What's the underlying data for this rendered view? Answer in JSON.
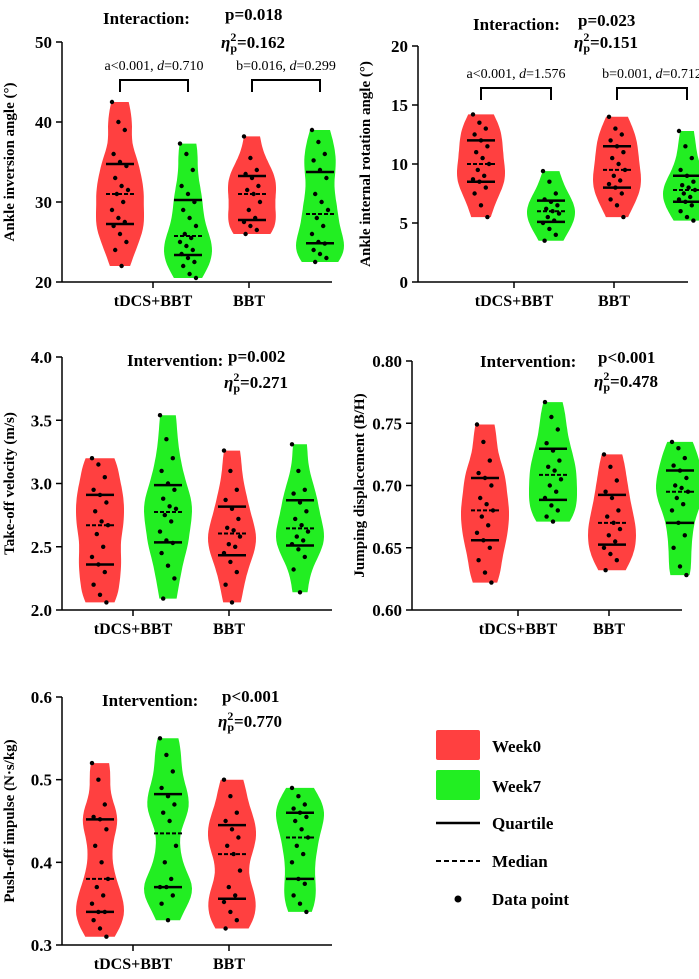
{
  "colors": {
    "week0": "#ff4040",
    "week7": "#22ee22",
    "line": "#000000"
  },
  "legend": {
    "week0": "Week0",
    "week7": "Week7",
    "quartile": "Quartile",
    "median": "Median",
    "data_point": "Data point"
  },
  "chart_data": [
    {
      "type": "violin",
      "id": "inversion",
      "ylabel": "Ankle inversion angle (°)",
      "ylim": [
        20,
        50
      ],
      "yticks": [
        "20",
        "30",
        "40",
        "50"
      ],
      "categories": [
        "tDCS+BBT",
        "BBT"
      ],
      "stat": {
        "label": "Interaction:",
        "p": "p=0.018",
        "eta_base": "η",
        "eta_sup": "2",
        "eta_sub": "p",
        "eta_val": "=0.162"
      },
      "comparisons": [
        {
          "pre": "a<0.001, ",
          "d_sym": "d",
          "post": "=0.710"
        },
        {
          "pre": "b=0.016, ",
          "d_sym": "d",
          "post": "=0.299"
        }
      ],
      "groups": [
        {
          "q1": 27.5,
          "median": 31.5,
          "q3": 34.5,
          "min": 22,
          "max": 42.5,
          "wk0": [
            42.5,
            40,
            39,
            36,
            35,
            34.5,
            33,
            32,
            31.5,
            31,
            30,
            29,
            28,
            27.5,
            27,
            26,
            25,
            24,
            22
          ],
          "wk7": [
            37.3,
            36,
            34,
            32,
            31,
            30,
            29,
            28,
            27,
            26,
            25.5,
            25,
            24.5,
            24,
            23.5,
            23,
            22.5,
            22,
            21,
            20.5
          ]
        },
        {
          "q1": 28,
          "median": 31.5,
          "q3": 34,
          "min": 26,
          "max": 38.2,
          "wk0": [
            38.2,
            35.5,
            34,
            33.5,
            33,
            32,
            31.5,
            31,
            30,
            29,
            28,
            27.5,
            27,
            26.5,
            26
          ],
          "wk7": [
            39,
            37.5,
            36,
            35.2,
            34,
            33,
            31,
            30,
            29,
            28,
            27,
            26,
            25,
            24.8,
            24,
            23.5,
            23,
            22.5
          ]
        }
      ]
    },
    {
      "type": "violin",
      "id": "rotation",
      "ylabel": "Ankle internal rotation angle (°)",
      "ylim": [
        0,
        20
      ],
      "yticks": [
        "0",
        "5",
        "10",
        "15",
        "20"
      ],
      "categories": [
        "tDCS+BBT",
        "BBT"
      ],
      "stat": {
        "label": "Interaction:",
        "p": "p=0.023",
        "eta_base": "η",
        "eta_sup": "2",
        "eta_sub": "p",
        "eta_val": "=0.151"
      },
      "comparisons": [
        {
          "pre": "a<0.001, ",
          "d_sym": "d",
          "post": "=1.576"
        },
        {
          "pre": "b=0.001, ",
          "d_sym": "d",
          "post": "=0.712"
        }
      ],
      "groups": [
        {
          "q1": 8.7,
          "median": 10.5,
          "q3": 12.5,
          "min": 5.2,
          "max": 14.3,
          "wk0": [
            14.2,
            13.5,
            13,
            12.5,
            12,
            11.5,
            11,
            10.5,
            10,
            9.5,
            9,
            8.7,
            8.5,
            8,
            7.5,
            6.5,
            5.5
          ],
          "wk7": [
            9.4,
            8.5,
            7.5,
            7,
            6.8,
            6.5,
            6.2,
            6,
            5.8,
            5.5,
            5.2,
            5,
            4.5,
            4,
            3.5
          ]
        },
        {
          "q1": 8.6,
          "median": 10.2,
          "q3": 12.4,
          "min": 5,
          "max": 14,
          "wk0": [
            14,
            13,
            12.5,
            12,
            11.5,
            11,
            10.5,
            10,
            9.5,
            9,
            8.6,
            8.3,
            8,
            7.5,
            7,
            6.5,
            5.5
          ],
          "wk7": [
            12.8,
            11.5,
            10.5,
            9.5,
            9,
            8.5,
            8.2,
            8,
            7.8,
            7.5,
            7.2,
            7,
            6.8,
            6.5,
            6,
            5.5,
            5.2
          ]
        }
      ]
    },
    {
      "type": "violin",
      "id": "velocity",
      "ylabel": "Take-off velocity (m/s)",
      "ylim": [
        2.0,
        4.0
      ],
      "yticks": [
        "2.0",
        "2.5",
        "3.0",
        "3.5",
        "4.0"
      ],
      "categories": [
        "tDCS+BBT",
        "BBT"
      ],
      "stat": {
        "label": "Intervention:",
        "p": "p=0.002",
        "eta_base": "η",
        "eta_sup": "2",
        "eta_sub": "p",
        "eta_val": "=0.271"
      },
      "comparisons": [],
      "groups": [
        {
          "q1": 2.36,
          "median": 2.67,
          "q3": 2.91,
          "min": 2.06,
          "max": 3.2,
          "wk0": [
            3.2,
            3.15,
            3.05,
            2.95,
            2.91,
            2.85,
            2.78,
            2.7,
            2.67,
            2.6,
            2.5,
            2.42,
            2.36,
            2.3,
            2.2,
            2.12,
            2.06
          ],
          "wk7": [
            3.54,
            3.35,
            3.2,
            3.1,
            3.0,
            2.95,
            2.88,
            2.82,
            2.8,
            2.75,
            2.7,
            2.62,
            2.55,
            2.53,
            2.45,
            2.35,
            2.25,
            2.09
          ]
        },
        {
          "q1": 2.5,
          "median": 2.63,
          "q3": 2.87,
          "min": 2.06,
          "max": 3.26,
          "wk0": [
            3.26,
            3.1,
            2.95,
            2.87,
            2.8,
            2.72,
            2.65,
            2.63,
            2.58,
            2.52,
            2.5,
            2.45,
            2.38,
            2.3,
            2.2,
            2.06
          ],
          "wk7": [
            3.31,
            3.1,
            2.95,
            2.92,
            2.85,
            2.78,
            2.72,
            2.67,
            2.62,
            2.58,
            2.55,
            2.52,
            2.48,
            2.42,
            2.32,
            2.14
          ]
        }
      ]
    },
    {
      "type": "violin",
      "id": "displacement",
      "ylabel": "Jumping displacement (B/H)",
      "ylim": [
        0.6,
        0.8
      ],
      "yticks": [
        "0.60",
        "0.65",
        "0.70",
        "0.75",
        "0.80"
      ],
      "categories": [
        "tDCS+BBT",
        "BBT"
      ],
      "stat": {
        "label": "Intervention:",
        "p": "p<0.001",
        "eta_base": "η",
        "eta_sup": "2",
        "eta_sub": "p",
        "eta_val": "=0.478"
      },
      "comparisons": [],
      "groups": [
        {
          "q1": 0.656,
          "median": 0.68,
          "q3": 0.706,
          "min": 0.622,
          "max": 0.749,
          "wk0": [
            0.749,
            0.735,
            0.72,
            0.71,
            0.706,
            0.7,
            0.69,
            0.685,
            0.68,
            0.675,
            0.668,
            0.662,
            0.656,
            0.65,
            0.64,
            0.63,
            0.622
          ],
          "wk7": [
            0.767,
            0.755,
            0.745,
            0.734,
            0.728,
            0.72,
            0.715,
            0.712,
            0.705,
            0.7,
            0.695,
            0.69,
            0.684,
            0.68,
            0.675,
            0.671
          ]
        },
        {
          "q1": 0.65,
          "median": 0.67,
          "q3": 0.703,
          "min": 0.632,
          "max": 0.725,
          "wk0": [
            0.725,
            0.715,
            0.704,
            0.695,
            0.69,
            0.68,
            0.675,
            0.67,
            0.665,
            0.66,
            0.655,
            0.65,
            0.645,
            0.64,
            0.632
          ],
          "wk7": [
            0.735,
            0.73,
            0.722,
            0.716,
            0.712,
            0.706,
            0.7,
            0.698,
            0.695,
            0.69,
            0.685,
            0.68,
            0.67,
            0.66,
            0.65,
            0.635,
            0.628
          ]
        }
      ]
    },
    {
      "type": "violin",
      "id": "impulse",
      "ylabel": "Push-off impulse (N·s/kg)",
      "ylim": [
        0.3,
        0.6
      ],
      "yticks": [
        "0.3",
        "0.4",
        "0.5",
        "0.6"
      ],
      "categories": [
        "tDCS+BBT",
        "BBT"
      ],
      "stat": {
        "label": "Intervention:",
        "p": "p<0.001",
        "eta_base": "η",
        "eta_sup": "2",
        "eta_sub": "p",
        "eta_val": "=0.770"
      },
      "comparisons": [],
      "groups": [
        {
          "q1": 0.34,
          "median": 0.38,
          "q3": 0.452,
          "min": 0.31,
          "max": 0.52,
          "wk0": [
            0.52,
            0.5,
            0.47,
            0.455,
            0.452,
            0.44,
            0.42,
            0.4,
            0.38,
            0.37,
            0.36,
            0.35,
            0.34,
            0.34,
            0.33,
            0.32,
            0.31
          ],
          "wk7": [
            0.55,
            0.53,
            0.51,
            0.49,
            0.48,
            0.47,
            0.46,
            0.45,
            0.42,
            0.4,
            0.38,
            0.37,
            0.37,
            0.36,
            0.35,
            0.33
          ]
        },
        {
          "q1": 0.352,
          "median": 0.42,
          "q3": 0.45,
          "min": 0.32,
          "max": 0.5,
          "wk0": [
            0.5,
            0.48,
            0.46,
            0.45,
            0.44,
            0.43,
            0.42,
            0.41,
            0.39,
            0.37,
            0.36,
            0.352,
            0.34,
            0.33,
            0.32
          ],
          "wk7": [
            0.49,
            0.48,
            0.47,
            0.465,
            0.46,
            0.455,
            0.45,
            0.44,
            0.43,
            0.42,
            0.41,
            0.4,
            0.38,
            0.374,
            0.36,
            0.35,
            0.34
          ]
        }
      ]
    }
  ]
}
